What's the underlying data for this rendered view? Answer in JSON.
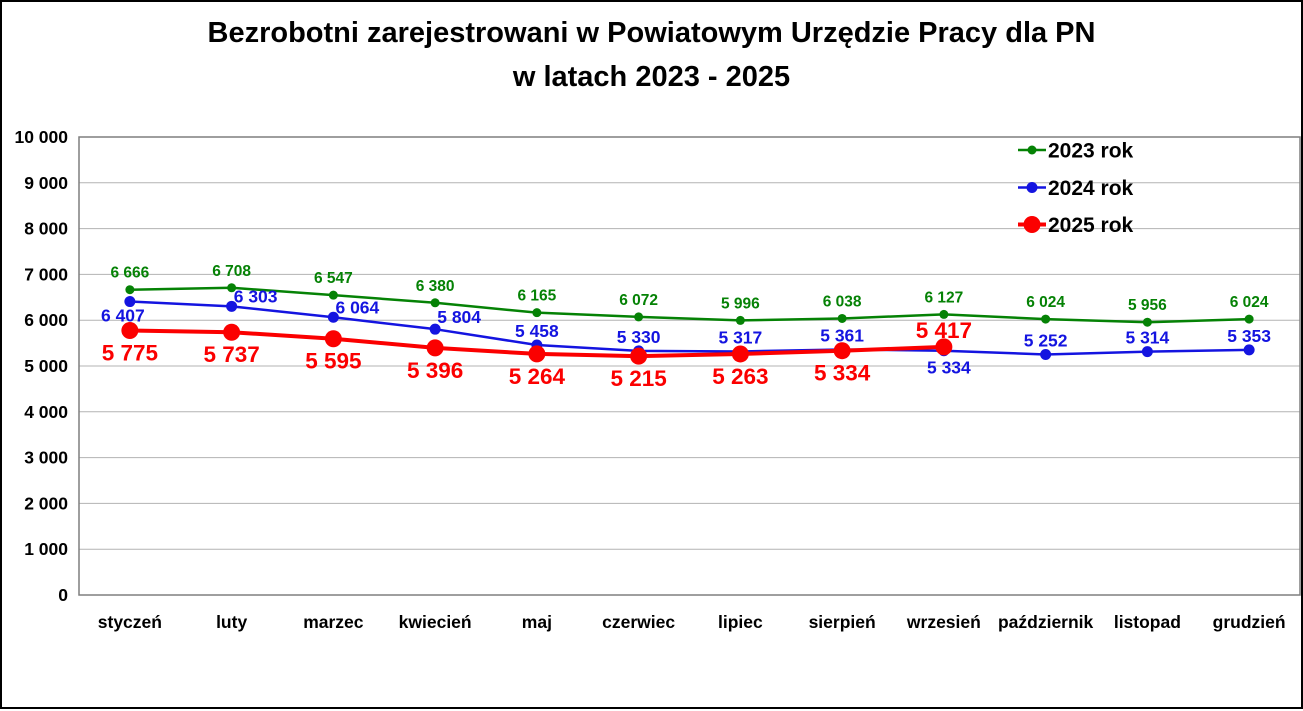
{
  "title": {
    "line1": "Bezrobotni zarejestrowani w Powiatowym Urzędzie Pracy dla PN",
    "line2": "w latach 2023 - 2025"
  },
  "chart_data": {
    "type": "line",
    "title": "Bezrobotni zarejestrowani w Powiatowym Urzędzie Pracy dla PN w latach 2023 - 2025",
    "categories": [
      "styczeń",
      "luty",
      "marzec",
      "kwiecień",
      "maj",
      "czerwiec",
      "lipiec",
      "sierpień",
      "wrzesień",
      "październik",
      "listopad",
      "grudzień"
    ],
    "series": [
      {
        "name": "2023 rok",
        "color": "#058205",
        "values": [
          6666,
          6708,
          6547,
          6380,
          6165,
          6072,
          5996,
          6038,
          6127,
          6024,
          5956,
          6024
        ],
        "line_width": 2.5,
        "marker_radius": 4.5,
        "label_font_size": 15.5,
        "label_default": {
          "dx": 0,
          "dy": -12
        },
        "label_overrides": {}
      },
      {
        "name": "2024 rok",
        "color": "#1414e0",
        "values": [
          6407,
          6303,
          6064,
          5804,
          5458,
          5330,
          5317,
          5361,
          5334,
          5252,
          5314,
          5353
        ],
        "line_width": 2.5,
        "marker_radius": 5.5,
        "label_font_size": 17.5,
        "label_default": {
          "dx": 0,
          "dy": -8
        },
        "label_overrides": {
          "0": {
            "dx": -7,
            "dy": 20
          },
          "1": {
            "dx": 24,
            "dy": -4
          },
          "2": {
            "dx": 24,
            "dy": -4
          },
          "3": {
            "dx": 24,
            "dy": -6
          },
          "8": {
            "dx": 5,
            "dy": 23
          }
        }
      },
      {
        "name": "2025 rok",
        "color": "#fb0000",
        "values": [
          5775,
          5737,
          5595,
          5396,
          5264,
          5215,
          5263,
          5334,
          5417
        ],
        "line_width": 4,
        "marker_radius": 8.5,
        "label_font_size": 22.5,
        "label_default": {
          "dx": 0,
          "dy": 30
        },
        "label_overrides": {
          "8": {
            "dx": 0,
            "dy": -9
          }
        }
      }
    ],
    "ylim": [
      0,
      10000
    ],
    "ytick_step": 1000,
    "grid": true,
    "grid_color": "#b3b3b3",
    "axis_border_color": "#7f7f7f",
    "axis_label_color": "#000000",
    "legend_position": "top-right",
    "legend_labels": [
      "2023 rok",
      "2024 rok",
      "2025 rok"
    ],
    "number_format_thousands_separator": " "
  }
}
